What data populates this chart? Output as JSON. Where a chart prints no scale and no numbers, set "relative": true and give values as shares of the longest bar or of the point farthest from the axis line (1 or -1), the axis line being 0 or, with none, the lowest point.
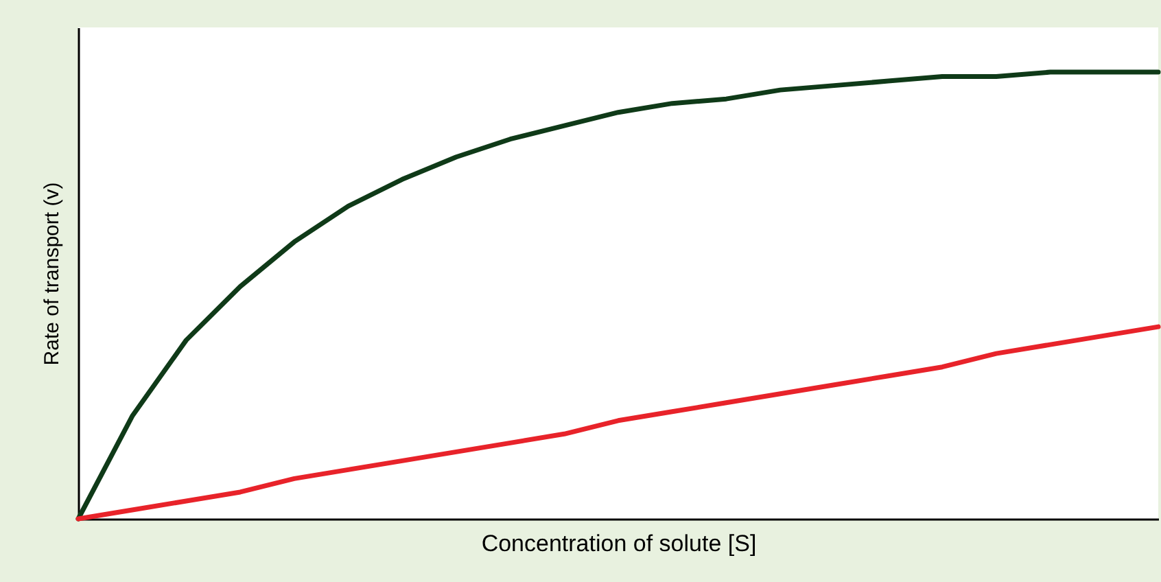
{
  "chart_data": {
    "type": "line",
    "xlabel": "Concentration of solute [S]",
    "ylabel": "Rate of transport (v)",
    "relative": true,
    "tick_labels": false,
    "categories": [
      null,
      null,
      null,
      null,
      null,
      null,
      null,
      null,
      null,
      null,
      null,
      null,
      null,
      null,
      null,
      null,
      null,
      null,
      null,
      null,
      null
    ],
    "series": [
      {
        "color": "#0f3a18",
        "values": [
          0,
          0.23,
          0.4,
          0.52,
          0.62,
          0.7,
          0.76,
          0.81,
          0.85,
          0.88,
          0.91,
          0.93,
          0.94,
          0.96,
          0.97,
          0.98,
          0.99,
          0.99,
          1.0,
          1.0,
          1.0
        ]
      },
      {
        "color": "#e8232a",
        "values": [
          0,
          0.02,
          0.04,
          0.06,
          0.09,
          0.11,
          0.13,
          0.15,
          0.17,
          0.19,
          0.22,
          0.24,
          0.26,
          0.28,
          0.3,
          0.32,
          0.34,
          0.37,
          0.39,
          0.41,
          0.43
        ]
      }
    ]
  }
}
